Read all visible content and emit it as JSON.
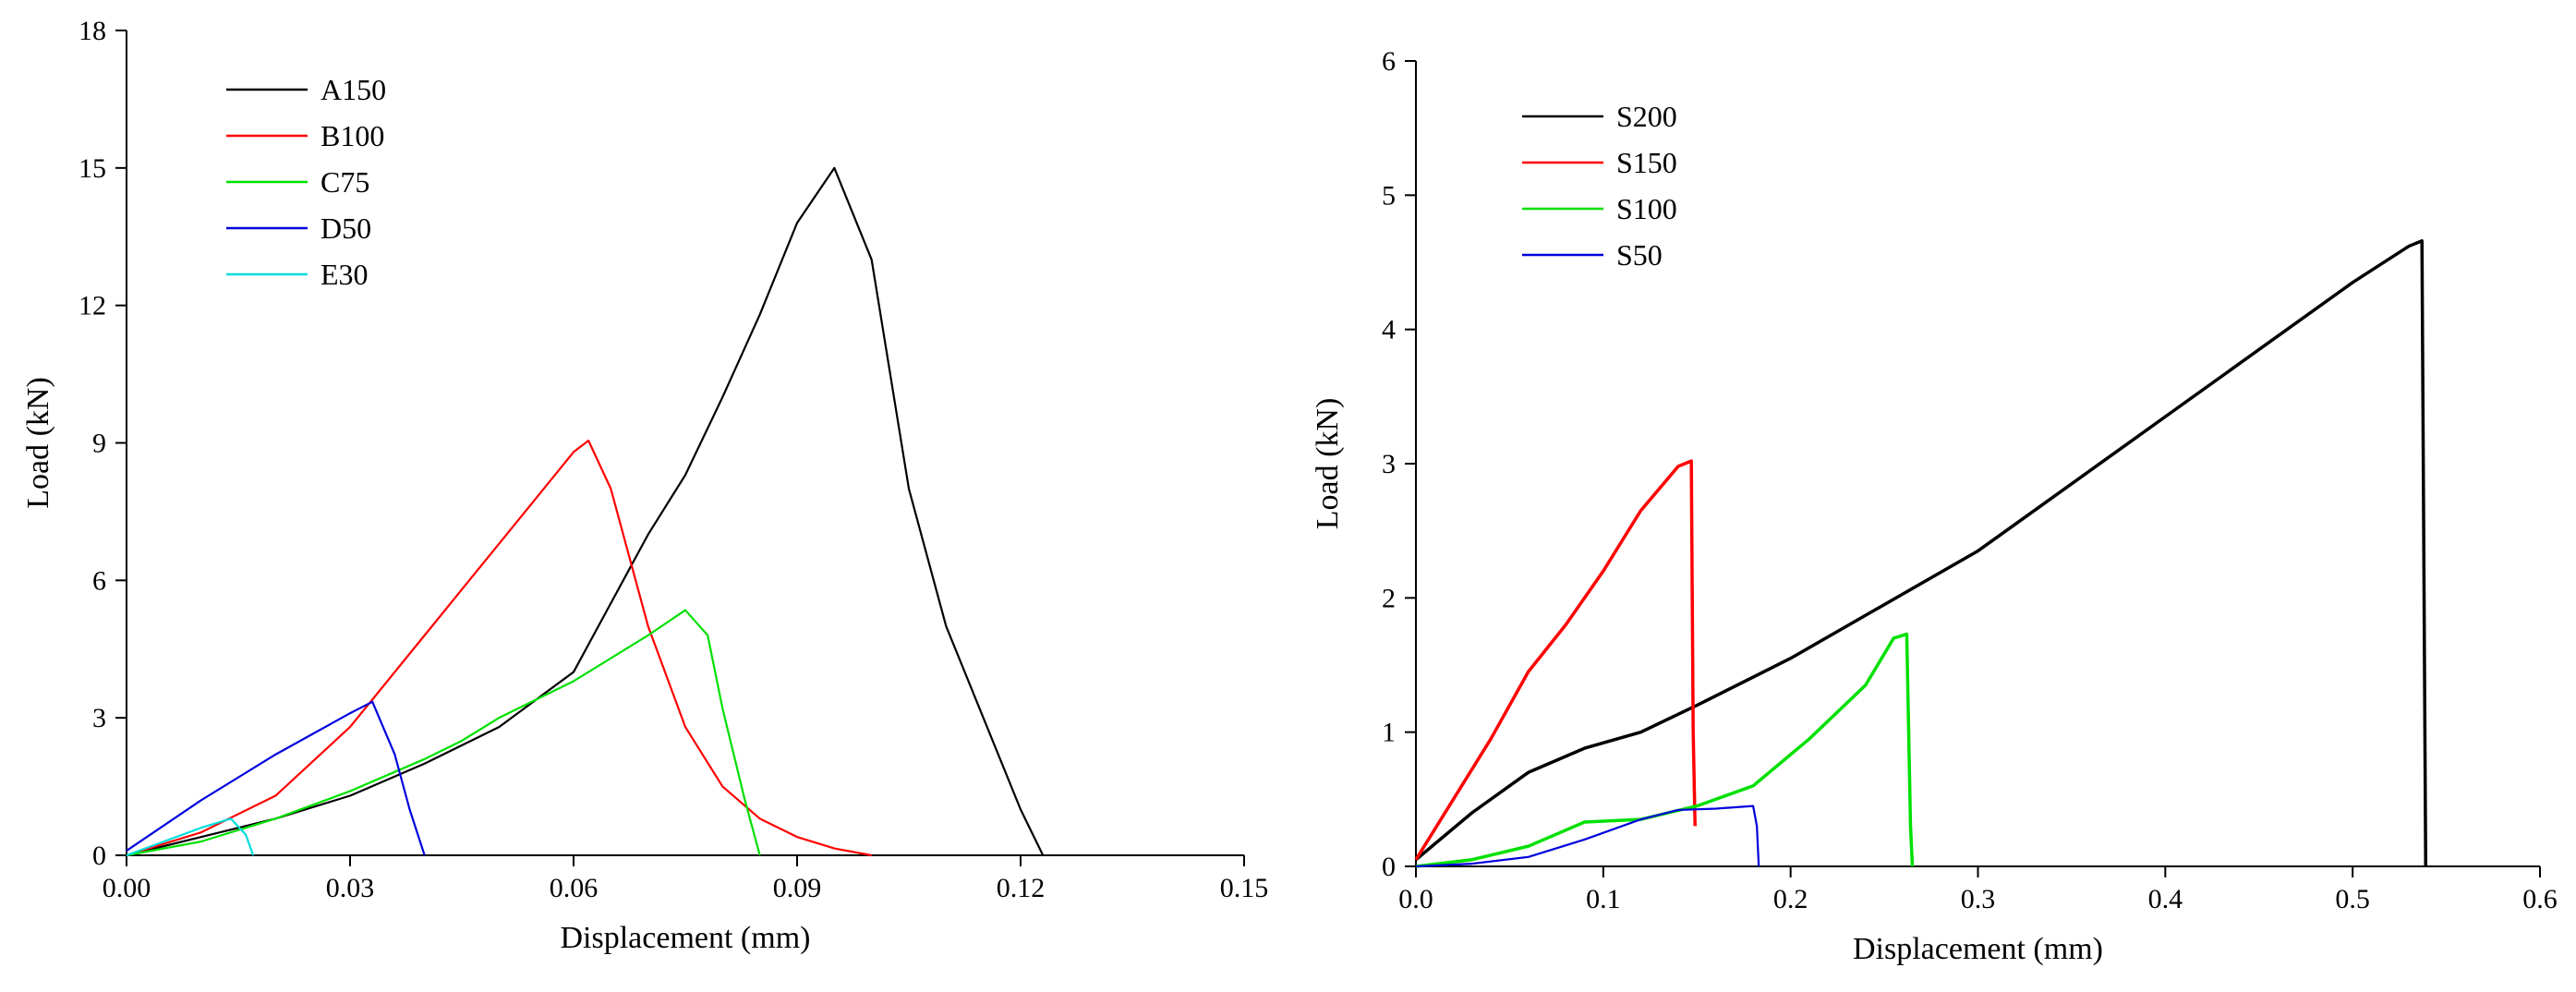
{
  "chart_data": [
    {
      "type": "line",
      "title": "",
      "xlabel": "Displacement (mm)",
      "ylabel": "Load (kN)",
      "xlim": [
        0,
        0.15
      ],
      "ylim": [
        0,
        18
      ],
      "xticks": [
        0.0,
        0.03,
        0.06,
        0.09,
        0.12,
        0.15
      ],
      "yticks": [
        0,
        3,
        6,
        9,
        12,
        15,
        18
      ],
      "xtick_labels": [
        "0.00",
        "0.03",
        "0.06",
        "0.09",
        "0.12",
        "0.15"
      ],
      "ytick_labels": [
        "0",
        "3",
        "6",
        "9",
        "12",
        "15",
        "18"
      ],
      "grid": false,
      "legend_position": "top-left",
      "series": [
        {
          "name": "A150",
          "color": "#000000",
          "x": [
            0,
            0.01,
            0.02,
            0.03,
            0.04,
            0.05,
            0.06,
            0.065,
            0.07,
            0.075,
            0.08,
            0.085,
            0.09,
            0.095,
            0.1,
            0.105,
            0.11,
            0.115,
            0.12,
            0.123
          ],
          "y": [
            0,
            0.4,
            0.8,
            1.3,
            2.0,
            2.8,
            4.0,
            5.5,
            7.0,
            8.3,
            10.0,
            11.8,
            13.8,
            15.0,
            13.0,
            8.0,
            5.0,
            3.0,
            1.0,
            0
          ]
        },
        {
          "name": "B100",
          "color": "#ff0000",
          "x": [
            0,
            0.01,
            0.02,
            0.03,
            0.04,
            0.05,
            0.055,
            0.06,
            0.062,
            0.065,
            0.07,
            0.075,
            0.08,
            0.085,
            0.09,
            0.095,
            0.1
          ],
          "y": [
            0,
            0.5,
            1.3,
            2.8,
            4.8,
            6.8,
            7.8,
            8.8,
            9.05,
            8.0,
            5.0,
            2.8,
            1.5,
            0.8,
            0.4,
            0.15,
            0
          ]
        },
        {
          "name": "C75",
          "color": "#00e000",
          "x": [
            0,
            0.01,
            0.02,
            0.03,
            0.04,
            0.045,
            0.05,
            0.06,
            0.07,
            0.075,
            0.078,
            0.08,
            0.083,
            0.085
          ],
          "y": [
            0,
            0.3,
            0.8,
            1.4,
            2.1,
            2.5,
            3.0,
            3.8,
            4.8,
            5.35,
            4.8,
            3.2,
            1.2,
            0
          ]
        },
        {
          "name": "D50",
          "color": "#0000dd",
          "x": [
            0,
            0.01,
            0.02,
            0.03,
            0.033,
            0.036,
            0.038,
            0.04
          ],
          "y": [
            0.1,
            1.2,
            2.2,
            3.1,
            3.35,
            2.2,
            1.0,
            0
          ]
        },
        {
          "name": "E30",
          "color": "#00dddd",
          "x": [
            0,
            0.005,
            0.01,
            0.014,
            0.016,
            0.017
          ],
          "y": [
            0,
            0.3,
            0.6,
            0.8,
            0.45,
            0
          ]
        }
      ]
    },
    {
      "type": "line",
      "title": "",
      "xlabel": "Displacement (mm)",
      "ylabel": "Load (kN)",
      "xlim": [
        0,
        0.6
      ],
      "ylim": [
        0,
        6
      ],
      "xticks": [
        0,
        0.1,
        0.2,
        0.3,
        0.4,
        0.5,
        0.6
      ],
      "yticks": [
        0,
        1,
        2,
        3,
        4,
        5,
        6
      ],
      "xtick_labels": [
        "0.0",
        "0.1",
        "0.2",
        "0.3",
        "0.4",
        "0.5",
        "0.6"
      ],
      "ytick_labels": [
        "0",
        "1",
        "2",
        "3",
        "4",
        "5",
        "6"
      ],
      "grid": false,
      "legend_position": "top-left",
      "series": [
        {
          "name": "S200",
          "color": "#000000",
          "x": [
            0,
            0.03,
            0.06,
            0.09,
            0.12,
            0.15,
            0.2,
            0.25,
            0.3,
            0.35,
            0.4,
            0.45,
            0.5,
            0.53,
            0.537,
            0.539
          ],
          "y": [
            0.05,
            0.4,
            0.7,
            0.88,
            1.0,
            1.2,
            1.55,
            1.95,
            2.35,
            2.85,
            3.35,
            3.85,
            4.35,
            4.62,
            4.66,
            0
          ]
        },
        {
          "name": "S150",
          "color": "#ff0000",
          "x": [
            0,
            0.02,
            0.04,
            0.06,
            0.08,
            0.1,
            0.12,
            0.14,
            0.147,
            0.148,
            0.149
          ],
          "y": [
            0.05,
            0.5,
            0.95,
            1.45,
            1.8,
            2.2,
            2.65,
            2.98,
            3.02,
            1.0,
            0.3
          ]
        },
        {
          "name": "S100",
          "color": "#00e000",
          "x": [
            0,
            0.03,
            0.06,
            0.09,
            0.12,
            0.15,
            0.18,
            0.21,
            0.24,
            0.255,
            0.262,
            0.264,
            0.265
          ],
          "y": [
            0,
            0.05,
            0.15,
            0.33,
            0.35,
            0.45,
            0.6,
            0.95,
            1.35,
            1.7,
            1.73,
            0.3,
            0
          ]
        },
        {
          "name": "S50",
          "color": "#0000dd",
          "x": [
            0,
            0.03,
            0.06,
            0.09,
            0.12,
            0.14,
            0.16,
            0.18,
            0.182,
            0.183
          ],
          "y": [
            0,
            0.02,
            0.07,
            0.2,
            0.35,
            0.42,
            0.43,
            0.45,
            0.3,
            0
          ]
        }
      ]
    }
  ]
}
